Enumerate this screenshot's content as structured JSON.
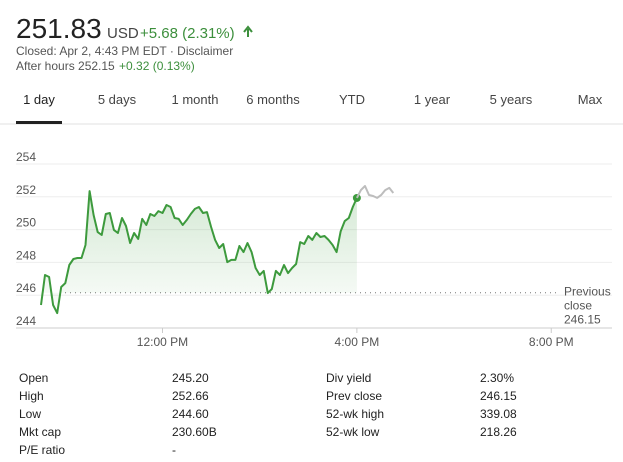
{
  "quote": {
    "price": "251.83",
    "currency": "USD",
    "change": "+5.68 (2.31%)",
    "status": "Closed: Apr 2, 4:43 PM EDT · Disclaimer",
    "after_hours": "After hours 252.15",
    "after_hours_change": "+0.32 (0.13%)"
  },
  "tabs": [
    "1 day",
    "5 days",
    "1 month",
    "6 months",
    "YTD",
    "1 year",
    "5 years",
    "Max"
  ],
  "selected_tab": 0,
  "chart_data": {
    "type": "line",
    "xlim": [
      570,
      1275
    ],
    "xticks": [
      {
        "value": 720,
        "label": "12:00 PM"
      },
      {
        "value": 960,
        "label": "4:00 PM"
      },
      {
        "value": 1200,
        "label": "8:00 PM"
      }
    ],
    "ylim": [
      244,
      254
    ],
    "yticks": [
      244,
      246,
      248,
      250,
      252,
      254
    ],
    "grid": true,
    "reference_line": {
      "value": 246.15,
      "label": [
        "Previous",
        "close"
      ]
    },
    "series": [
      {
        "color": "#3d9a3d",
        "x": [
          570,
          575,
          580,
          585,
          590,
          595,
          600,
          605,
          610,
          615,
          620,
          625,
          630,
          635,
          640,
          645,
          650,
          655,
          660,
          665,
          670,
          675,
          680,
          685,
          690,
          695,
          700,
          705,
          710,
          715,
          720,
          725,
          730,
          735,
          740,
          745,
          750,
          755,
          760,
          765,
          770,
          775,
          780,
          785,
          790,
          795,
          800,
          805,
          810,
          815,
          820,
          825,
          830,
          835,
          840,
          845,
          850,
          855,
          860,
          865,
          870,
          875,
          880,
          885,
          890,
          895,
          900,
          905,
          910,
          915,
          920,
          925,
          930,
          935,
          940,
          945,
          950,
          955,
          960
        ],
        "values": [
          245.4,
          247.23,
          247.11,
          245.4,
          244.91,
          246.5,
          246.74,
          247.84,
          248.21,
          248.27,
          248.27,
          249.06,
          252.35,
          250.89,
          249.85,
          249.67,
          250.95,
          251.01,
          249.98,
          249.79,
          250.71,
          250.22,
          249.18,
          249.79,
          249.43,
          250.65,
          250.28,
          250.95,
          250.83,
          251.13,
          251.01,
          251.5,
          251.38,
          250.71,
          250.65,
          250.28,
          250.59,
          250.95,
          251.26,
          251.38,
          251.01,
          251.07,
          250.16,
          249.37,
          248.88,
          249.12,
          248.02,
          248.15,
          248.15,
          249.0,
          248.63,
          249.18,
          248.63,
          247.66,
          247.23,
          247.48,
          246.13,
          246.38,
          247.48,
          247.23,
          247.84,
          247.35,
          247.66,
          247.9,
          249.24,
          249.12,
          249.61,
          249.37,
          249.79,
          249.55,
          249.61,
          249.37,
          249.06,
          248.63,
          249.9,
          250.52,
          250.71,
          251.38,
          251.93
        ]
      },
      {
        "color": "#bdbdbd",
        "x": [
          960,
          965,
          970,
          975,
          980,
          985,
          990,
          995,
          1000,
          1005
        ],
        "values": [
          251.93,
          252.41,
          252.66,
          252.11,
          252.05,
          251.93,
          252.11,
          252.41,
          252.54,
          252.23
        ]
      }
    ]
  },
  "stats": {
    "left": [
      [
        "Open",
        "245.20"
      ],
      [
        "High",
        "252.66"
      ],
      [
        "Low",
        "244.60"
      ],
      [
        "Mkt cap",
        "230.60B"
      ],
      [
        "P/E ratio",
        "-"
      ]
    ],
    "right": [
      [
        "Div yield",
        "2.30%"
      ],
      [
        "Prev close",
        "246.15"
      ],
      [
        "52-wk high",
        "339.08"
      ],
      [
        "52-wk low",
        "218.26"
      ]
    ]
  }
}
